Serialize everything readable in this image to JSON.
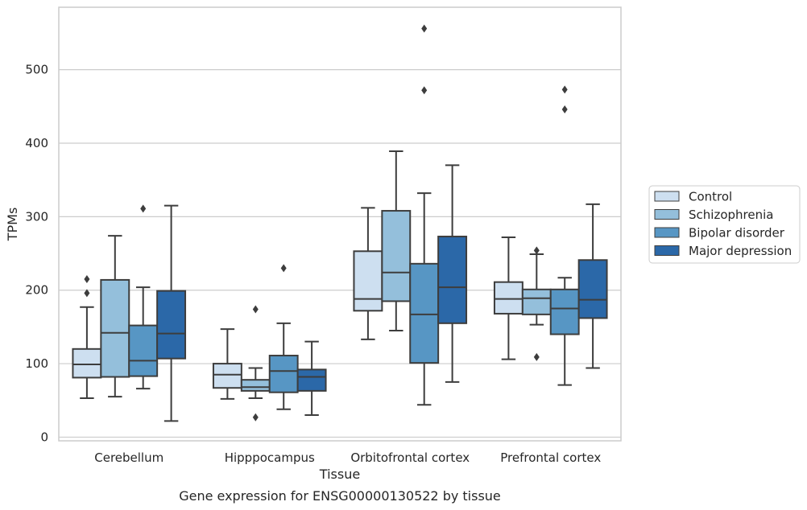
{
  "chart_data": {
    "type": "box",
    "title": "Gene expression for ENSG00000130522 by tissue",
    "xlabel": "Tissue",
    "ylabel": "TPMs",
    "ylim": [
      -5,
      585
    ],
    "yticks": [
      0,
      100,
      200,
      300,
      400,
      500
    ],
    "grid": "horizontal",
    "legend_position": "right",
    "categories": [
      "Cerebellum",
      "Hipppocampus",
      "Orbitofrontal cortex",
      "Prefrontal cortex"
    ],
    "series": [
      {
        "name": "Control",
        "color": "#cddff0",
        "boxes": [
          {
            "whislo": 53,
            "q1": 81,
            "med": 99,
            "q3": 120,
            "whishi": 177,
            "fliers": [
              196,
              215
            ]
          },
          {
            "whislo": 52,
            "q1": 67,
            "med": 85,
            "q3": 100,
            "whishi": 147,
            "fliers": []
          },
          {
            "whislo": 133,
            "q1": 172,
            "med": 188,
            "q3": 253,
            "whishi": 312,
            "fliers": []
          },
          {
            "whislo": 106,
            "q1": 168,
            "med": 188,
            "q3": 211,
            "whishi": 272,
            "fliers": []
          }
        ]
      },
      {
        "name": "Schizophrenia",
        "color": "#94bfdb",
        "boxes": [
          {
            "whislo": 55,
            "q1": 82,
            "med": 142,
            "q3": 214,
            "whishi": 274,
            "fliers": []
          },
          {
            "whislo": 53,
            "q1": 63,
            "med": 68,
            "q3": 78,
            "whishi": 94,
            "fliers": [
              27,
              174
            ]
          },
          {
            "whislo": 145,
            "q1": 185,
            "med": 224,
            "q3": 308,
            "whishi": 389,
            "fliers": []
          },
          {
            "whislo": 153,
            "q1": 167,
            "med": 189,
            "q3": 201,
            "whishi": 249,
            "fliers": [
              109,
              254
            ]
          }
        ]
      },
      {
        "name": "Bipolar disorder",
        "color": "#5796c4",
        "boxes": [
          {
            "whislo": 66,
            "q1": 83,
            "med": 104,
            "q3": 152,
            "whishi": 204,
            "fliers": [
              311
            ]
          },
          {
            "whislo": 38,
            "q1": 61,
            "med": 90,
            "q3": 111,
            "whishi": 155,
            "fliers": [
              230
            ]
          },
          {
            "whislo": 44,
            "q1": 101,
            "med": 167,
            "q3": 236,
            "whishi": 332,
            "fliers": [
              472,
              556
            ]
          },
          {
            "whislo": 71,
            "q1": 140,
            "med": 175,
            "q3": 201,
            "whishi": 217,
            "fliers": [
              446,
              473
            ]
          }
        ]
      },
      {
        "name": "Major depression",
        "color": "#2b68a8",
        "boxes": [
          {
            "whislo": 22,
            "q1": 107,
            "med": 141,
            "q3": 199,
            "whishi": 315,
            "fliers": []
          },
          {
            "whislo": 30,
            "q1": 63,
            "med": 82,
            "q3": 92,
            "whishi": 130,
            "fliers": []
          },
          {
            "whislo": 75,
            "q1": 155,
            "med": 204,
            "q3": 273,
            "whishi": 370,
            "fliers": []
          },
          {
            "whislo": 94,
            "q1": 162,
            "med": 187,
            "q3": 241,
            "whishi": 317,
            "fliers": []
          }
        ]
      }
    ]
  }
}
